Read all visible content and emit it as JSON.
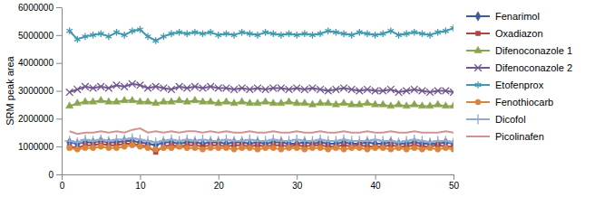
{
  "chart_data": {
    "type": "line",
    "y_label": "SRM peak area",
    "x": [
      1,
      2,
      3,
      4,
      5,
      6,
      7,
      8,
      9,
      10,
      11,
      12,
      13,
      14,
      15,
      16,
      17,
      18,
      19,
      20,
      21,
      22,
      23,
      24,
      25,
      26,
      27,
      28,
      29,
      30,
      31,
      32,
      33,
      34,
      35,
      36,
      37,
      38,
      39,
      40,
      41,
      42,
      43,
      44,
      45,
      46,
      47,
      48,
      49,
      50
    ],
    "xlim": [
      0,
      50
    ],
    "xticks": [
      0,
      10,
      20,
      30,
      40,
      50
    ],
    "ylim": [
      0,
      6000000
    ],
    "yticks": [
      0,
      1000000,
      2000000,
      3000000,
      4000000,
      5000000,
      6000000
    ],
    "grid": false,
    "legend": "right",
    "series": [
      {
        "name": "Fenarimol",
        "color": "#3b5e9b",
        "marker": "diamond",
        "line_style": "solid",
        "values": [
          1150000,
          1100000,
          1150000,
          1150000,
          1200000,
          1150000,
          1150000,
          1200000,
          1200000,
          1150000,
          1100000,
          1050000,
          1150000,
          1150000,
          1100000,
          1150000,
          1150000,
          1100000,
          1150000,
          1150000,
          1100000,
          1150000,
          1150000,
          1100000,
          1150000,
          1100000,
          1150000,
          1150000,
          1100000,
          1100000,
          1150000,
          1100000,
          1150000,
          1100000,
          1100000,
          1150000,
          1100000,
          1100000,
          1150000,
          1100000,
          1100000,
          1150000,
          1100000,
          1100000,
          1150000,
          1100000,
          1100000,
          1100000,
          1150000,
          1100000
        ]
      },
      {
        "name": "Oxadiazon",
        "color": "#aa4643",
        "marker": "square",
        "line_style": "solid",
        "values": [
          1000000,
          950000,
          1050000,
          1050000,
          1100000,
          1050000,
          1050000,
          1100000,
          1100000,
          1050000,
          1000000,
          800000,
          1000000,
          1050000,
          1000000,
          1050000,
          1050000,
          1000000,
          1050000,
          1050000,
          1000000,
          1050000,
          1050000,
          1000000,
          1050000,
          1000000,
          1050000,
          1050000,
          1000000,
          1050000,
          1000000,
          1050000,
          1050000,
          1000000,
          1000000,
          1050000,
          1000000,
          1050000,
          1000000,
          1000000,
          1000000,
          1050000,
          1000000,
          1000000,
          1050000,
          1000000,
          1000000,
          1050000,
          1000000,
          1000000
        ]
      },
      {
        "name": "Difenoconazole 1",
        "color": "#89a54e",
        "marker": "triangle",
        "line_style": "solid",
        "values": [
          2450000,
          2550000,
          2600000,
          2600000,
          2650000,
          2600000,
          2600000,
          2650000,
          2650000,
          2600000,
          2600000,
          2550000,
          2600000,
          2600000,
          2650000,
          2600000,
          2650000,
          2600000,
          2600000,
          2550000,
          2600000,
          2550000,
          2600000,
          2550000,
          2550000,
          2600000,
          2550000,
          2550000,
          2600000,
          2550000,
          2550000,
          2500000,
          2550000,
          2550000,
          2500000,
          2550000,
          2500000,
          2500000,
          2550000,
          2500000,
          2500000,
          2450000,
          2500000,
          2450000,
          2500000,
          2450000,
          2450000,
          2500000,
          2450000,
          2450000
        ]
      },
      {
        "name": "Difenoconazole 2",
        "color": "#71588f",
        "marker": "x",
        "line_style": "solid",
        "values": [
          2950000,
          3050000,
          3150000,
          3100000,
          3150000,
          3100000,
          3200000,
          3150000,
          3250000,
          3200000,
          3100000,
          3150000,
          3100000,
          3050000,
          3150000,
          3100000,
          3150000,
          3100000,
          3150000,
          3100000,
          3100000,
          3050000,
          3100000,
          3050000,
          3100000,
          3050000,
          3100000,
          3100000,
          3050000,
          3100000,
          3050000,
          3100000,
          3050000,
          3000000,
          3050000,
          3100000,
          3050000,
          3000000,
          3050000,
          3000000,
          3000000,
          3050000,
          2950000,
          3000000,
          3050000,
          3000000,
          2950000,
          3000000,
          3000000,
          2950000
        ]
      },
      {
        "name": "Etofenprox",
        "color": "#4198af",
        "marker": "asterisk",
        "line_style": "solid",
        "values": [
          5150000,
          4850000,
          4950000,
          5000000,
          5050000,
          4950000,
          5100000,
          5000000,
          5150000,
          5200000,
          4950000,
          4800000,
          4950000,
          5050000,
          5100000,
          5050000,
          5100000,
          5050000,
          5100000,
          5000000,
          5050000,
          5000000,
          5100000,
          5050000,
          5000000,
          5100000,
          5050000,
          5000000,
          5050000,
          5000000,
          5050000,
          5000000,
          5050000,
          5150000,
          5100000,
          5050000,
          5000000,
          5100000,
          5050000,
          5000000,
          5050000,
          5150000,
          5000000,
          5050000,
          5100000,
          5050000,
          5000000,
          5100000,
          5150000,
          5250000
        ]
      },
      {
        "name": "Fenothiocarb",
        "color": "#db843d",
        "marker": "circle",
        "line_style": "solid",
        "values": [
          950000,
          900000,
          950000,
          950000,
          1000000,
          950000,
          950000,
          1000000,
          1050000,
          1000000,
          950000,
          900000,
          950000,
          950000,
          1000000,
          950000,
          950000,
          900000,
          950000,
          950000,
          950000,
          900000,
          950000,
          950000,
          900000,
          950000,
          950000,
          900000,
          950000,
          950000,
          900000,
          950000,
          950000,
          900000,
          950000,
          900000,
          950000,
          950000,
          900000,
          950000,
          950000,
          900000,
          950000,
          900000,
          950000,
          900000,
          950000,
          900000,
          950000,
          900000
        ]
      },
      {
        "name": "Dicofol",
        "color": "#93a9cf",
        "marker": "plus",
        "line_style": "solid",
        "values": [
          1200000,
          1150000,
          1250000,
          1200000,
          1250000,
          1200000,
          1250000,
          1250000,
          1300000,
          1250000,
          1200000,
          1150000,
          1200000,
          1250000,
          1200000,
          1250000,
          1200000,
          1250000,
          1200000,
          1200000,
          1250000,
          1200000,
          1200000,
          1250000,
          1200000,
          1200000,
          1250000,
          1200000,
          1200000,
          1250000,
          1200000,
          1200000,
          1250000,
          1200000,
          1200000,
          1250000,
          1200000,
          1200000,
          1200000,
          1250000,
          1200000,
          1200000,
          1150000,
          1200000,
          1250000,
          1200000,
          1150000,
          1200000,
          1200000,
          1150000
        ]
      },
      {
        "name": "Picolinafen",
        "color": "#d19392",
        "marker": "none",
        "line_style": "solid",
        "values": [
          1550000,
          1450000,
          1500000,
          1500000,
          1550000,
          1500000,
          1550000,
          1500000,
          1600000,
          1650000,
          1500000,
          1550000,
          1500000,
          1550000,
          1500000,
          1550000,
          1550000,
          1500000,
          1550000,
          1500000,
          1550000,
          1500000,
          1500000,
          1550000,
          1500000,
          1500000,
          1550000,
          1500000,
          1500000,
          1550000,
          1500000,
          1500000,
          1550000,
          1500000,
          1500000,
          1550000,
          1500000,
          1500000,
          1550000,
          1500000,
          1500000,
          1550000,
          1500000,
          1500000,
          1550000,
          1500000,
          1500000,
          1500000,
          1550000,
          1500000
        ]
      }
    ]
  }
}
